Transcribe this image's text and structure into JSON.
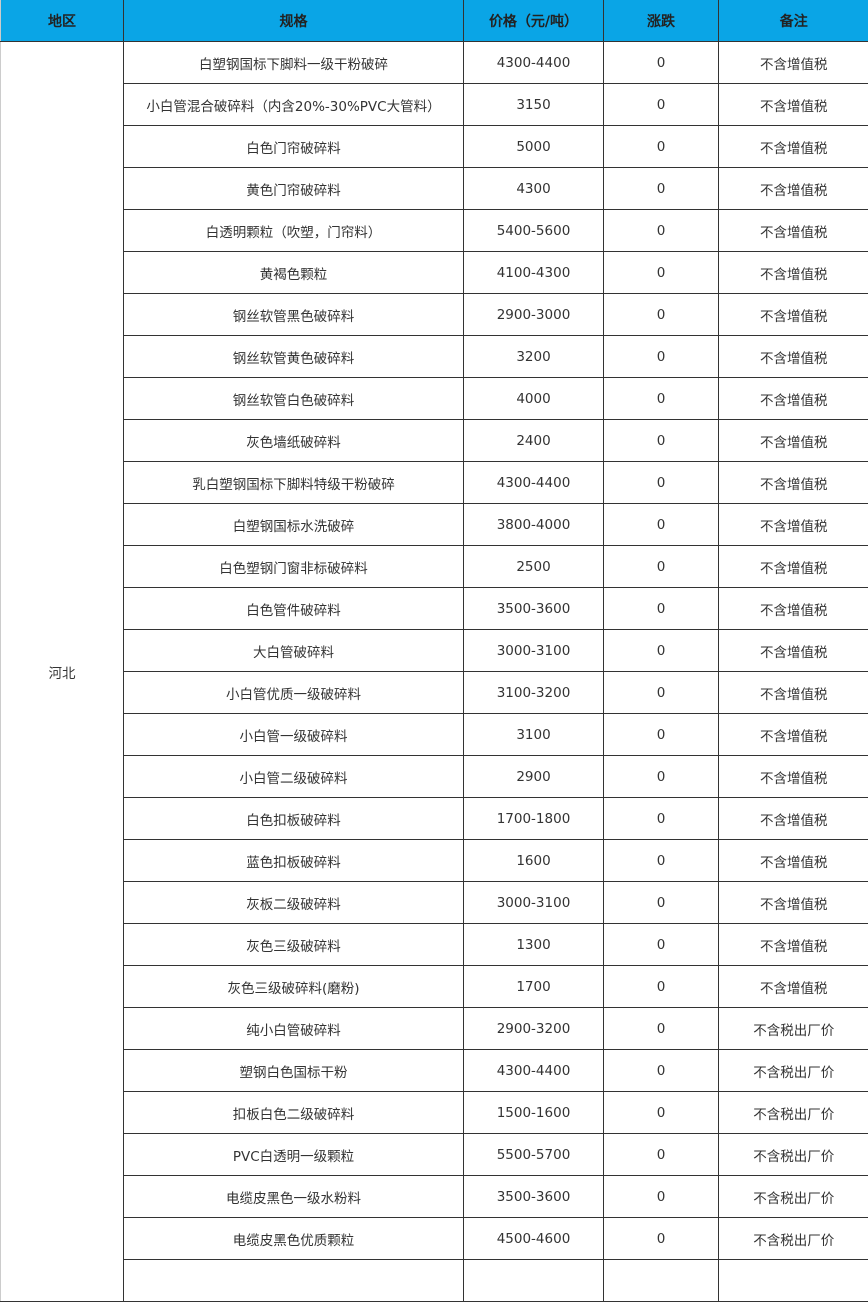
{
  "header": {
    "region": "地区",
    "spec": "规格",
    "price": "价格（元/吨）",
    "change": "涨跌",
    "note": "备注"
  },
  "colors": {
    "header_bg": "#0aa5e6"
  },
  "region": "河北",
  "rows": [
    {
      "spec": "白塑钢国标下脚料一级干粉破碎",
      "price": "4300-4400",
      "change": "0",
      "note": "不含增值税"
    },
    {
      "spec": "小白管混合破碎料（内含20%-30%PVC大管料）",
      "price": "3150",
      "change": "0",
      "note": "不含增值税"
    },
    {
      "spec": "白色门帘破碎料",
      "price": "5000",
      "change": "0",
      "note": "不含增值税"
    },
    {
      "spec": "黄色门帘破碎料",
      "price": "4300",
      "change": "0",
      "note": "不含增值税"
    },
    {
      "spec": "白透明颗粒（吹塑，门帘料）",
      "price": "5400-5600",
      "change": "0",
      "note": "不含增值税"
    },
    {
      "spec": "黄褐色颗粒",
      "price": "4100-4300",
      "change": "0",
      "note": "不含增值税"
    },
    {
      "spec": "钢丝软管黑色破碎料",
      "price": "2900-3000",
      "change": "0",
      "note": "不含增值税"
    },
    {
      "spec": "钢丝软管黄色破碎料",
      "price": "3200",
      "change": "0",
      "note": "不含增值税"
    },
    {
      "spec": "钢丝软管白色破碎料",
      "price": "4000",
      "change": "0",
      "note": "不含增值税"
    },
    {
      "spec": "灰色墙纸破碎料",
      "price": "2400",
      "change": "0",
      "note": "不含增值税"
    },
    {
      "spec": "乳白塑钢国标下脚料特级干粉破碎",
      "price": "4300-4400",
      "change": "0",
      "note": "不含增值税"
    },
    {
      "spec": "白塑钢国标水洗破碎",
      "price": "3800-4000",
      "change": "0",
      "note": "不含增值税"
    },
    {
      "spec": "白色塑钢门窗非标破碎料",
      "price": "2500",
      "change": "0",
      "note": "不含增值税"
    },
    {
      "spec": "白色管件破碎料",
      "price": "3500-3600",
      "change": "0",
      "note": "不含增值税"
    },
    {
      "spec": "大白管破碎料",
      "price": "3000-3100",
      "change": "0",
      "note": "不含增值税"
    },
    {
      "spec": "小白管优质一级破碎料",
      "price": "3100-3200",
      "change": "0",
      "note": "不含增值税"
    },
    {
      "spec": "小白管一级破碎料",
      "price": "3100",
      "change": "0",
      "note": "不含增值税"
    },
    {
      "spec": "小白管二级破碎料",
      "price": "2900",
      "change": "0",
      "note": "不含增值税"
    },
    {
      "spec": "白色扣板破碎料",
      "price": "1700-1800",
      "change": "0",
      "note": "不含增值税"
    },
    {
      "spec": "蓝色扣板破碎料",
      "price": "1600",
      "change": "0",
      "note": "不含增值税"
    },
    {
      "spec": "灰板二级破碎料",
      "price": "3000-3100",
      "change": "0",
      "note": "不含增值税"
    },
    {
      "spec": "灰色三级破碎料",
      "price": "1300",
      "change": "0",
      "note": "不含增值税"
    },
    {
      "spec": "灰色三级破碎料(磨粉)",
      "price": "1700",
      "change": "0",
      "note": "不含增值税"
    },
    {
      "spec": "纯小白管破碎料",
      "price": "2900-3200",
      "change": "0",
      "note": "不含税出厂价"
    },
    {
      "spec": "塑钢白色国标干粉",
      "price": "4300-4400",
      "change": "0",
      "note": "不含税出厂价"
    },
    {
      "spec": "扣板白色二级破碎料",
      "price": "1500-1600",
      "change": "0",
      "note": "不含税出厂价"
    },
    {
      "spec": "PVC白透明一级颗粒",
      "price": "5500-5700",
      "change": "0",
      "note": "不含税出厂价"
    },
    {
      "spec": "电缆皮黑色一级水粉料",
      "price": "3500-3600",
      "change": "0",
      "note": "不含税出厂价"
    },
    {
      "spec": "电缆皮黑色优质颗粒",
      "price": "4500-4600",
      "change": "0",
      "note": "不含税出厂价"
    },
    {
      "spec": "",
      "price": "",
      "change": "",
      "note": ""
    }
  ]
}
